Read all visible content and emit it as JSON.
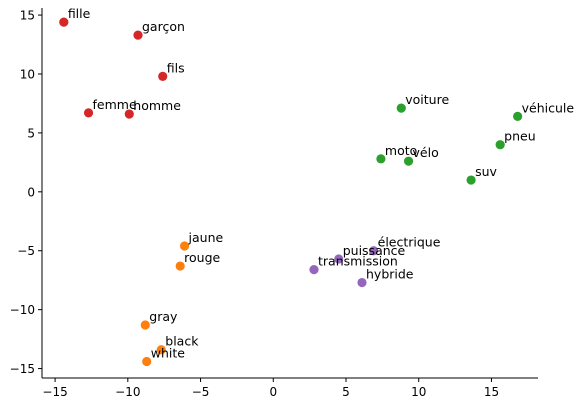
{
  "chart_data": {
    "type": "scatter",
    "title": "",
    "xlabel": "",
    "ylabel": "",
    "xlim": [
      -15.9,
      18.2
    ],
    "ylim": [
      -15.8,
      15.6
    ],
    "grid": false,
    "x_ticks": [
      -15,
      -10,
      -5,
      0,
      5,
      10,
      15
    ],
    "y_ticks": [
      15,
      10,
      5,
      0,
      -5,
      -10,
      -15
    ],
    "series": [
      {
        "color": "#d62728",
        "points": [
          {
            "label": "fille",
            "x": -14.4,
            "y": 14.4
          },
          {
            "label": "garçon",
            "x": -9.3,
            "y": 13.3
          },
          {
            "label": "fils",
            "x": -7.6,
            "y": 9.8
          },
          {
            "label": "femme",
            "x": -12.7,
            "y": 6.7
          },
          {
            "label": "homme",
            "x": -9.9,
            "y": 6.6
          }
        ]
      },
      {
        "color": "#2ca02c",
        "points": [
          {
            "label": "voiture",
            "x": 8.8,
            "y": 7.1
          },
          {
            "label": "véhicule",
            "x": 16.8,
            "y": 6.4
          },
          {
            "label": "pneu",
            "x": 15.6,
            "y": 4.0
          },
          {
            "label": "moto",
            "x": 7.4,
            "y": 2.8
          },
          {
            "label": "vélo",
            "x": 9.3,
            "y": 2.6
          },
          {
            "label": "suv",
            "x": 13.6,
            "y": 1.0
          }
        ]
      },
      {
        "color": "#ff7f0e",
        "points": [
          {
            "label": "jaune",
            "x": -6.1,
            "y": -4.6
          },
          {
            "label": "rouge",
            "x": -6.4,
            "y": -6.3
          },
          {
            "label": "gray",
            "x": -8.8,
            "y": -11.3
          },
          {
            "label": "black",
            "x": -7.7,
            "y": -13.4
          },
          {
            "label": "white",
            "x": -8.7,
            "y": -14.4
          }
        ]
      },
      {
        "color": "#9467bd",
        "points": [
          {
            "label": "électrique",
            "x": 6.9,
            "y": -5.0
          },
          {
            "label": "puissance",
            "x": 4.5,
            "y": -5.7
          },
          {
            "label": "transmission",
            "x": 2.8,
            "y": -6.6
          },
          {
            "label": "hybride",
            "x": 6.1,
            "y": -7.7
          }
        ]
      }
    ]
  }
}
